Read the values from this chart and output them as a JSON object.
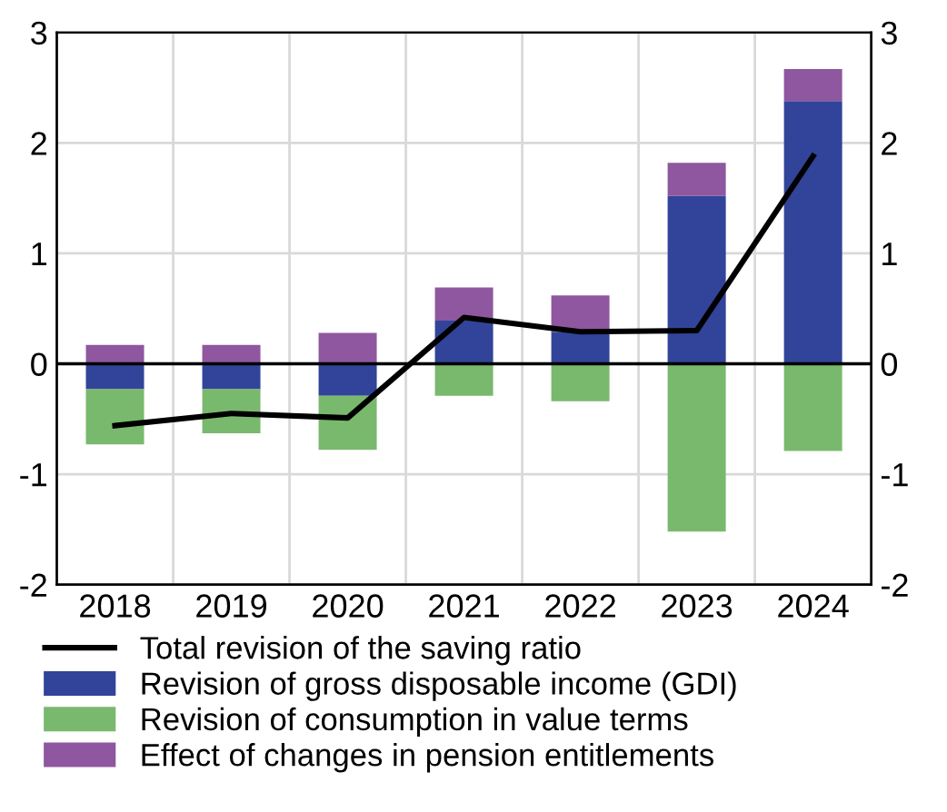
{
  "chart_data": {
    "type": "bar",
    "stacked": true,
    "categories": [
      "2018",
      "2019",
      "2020",
      "2021",
      "2022",
      "2023",
      "2024"
    ],
    "series": [
      {
        "name": "Total revision of the saving ratio",
        "type": "line",
        "color": "#000000",
        "values": [
          -0.56,
          -0.45,
          -0.49,
          0.42,
          0.29,
          0.3,
          1.88
        ]
      },
      {
        "name": "Revision of gross disposable income (GDI)",
        "color": "#31449a",
        "values": [
          -0.23,
          -0.23,
          -0.29,
          0.39,
          0.29,
          1.52,
          2.38
        ]
      },
      {
        "name": "Revision of consumption in value terms",
        "color": "#79b96d",
        "values": [
          -0.5,
          -0.4,
          -0.49,
          -0.29,
          -0.34,
          -1.52,
          -0.79
        ]
      },
      {
        "name": "Effect of changes in pension entitlements",
        "color": "#8f579f",
        "values": [
          0.17,
          0.17,
          0.28,
          0.3,
          0.33,
          0.3,
          0.29
        ]
      }
    ],
    "ylim": [
      -2,
      3
    ],
    "yticks": [
      -2,
      -1,
      0,
      1,
      2,
      3
    ],
    "y2lim": [
      -2,
      3
    ],
    "y2ticks": [
      -2,
      -1,
      0,
      1,
      2,
      3
    ],
    "ref_lines": [
      {
        "axis": "y",
        "value": 0,
        "color": "#000000"
      }
    ],
    "grid": true,
    "legend": "bottom"
  }
}
